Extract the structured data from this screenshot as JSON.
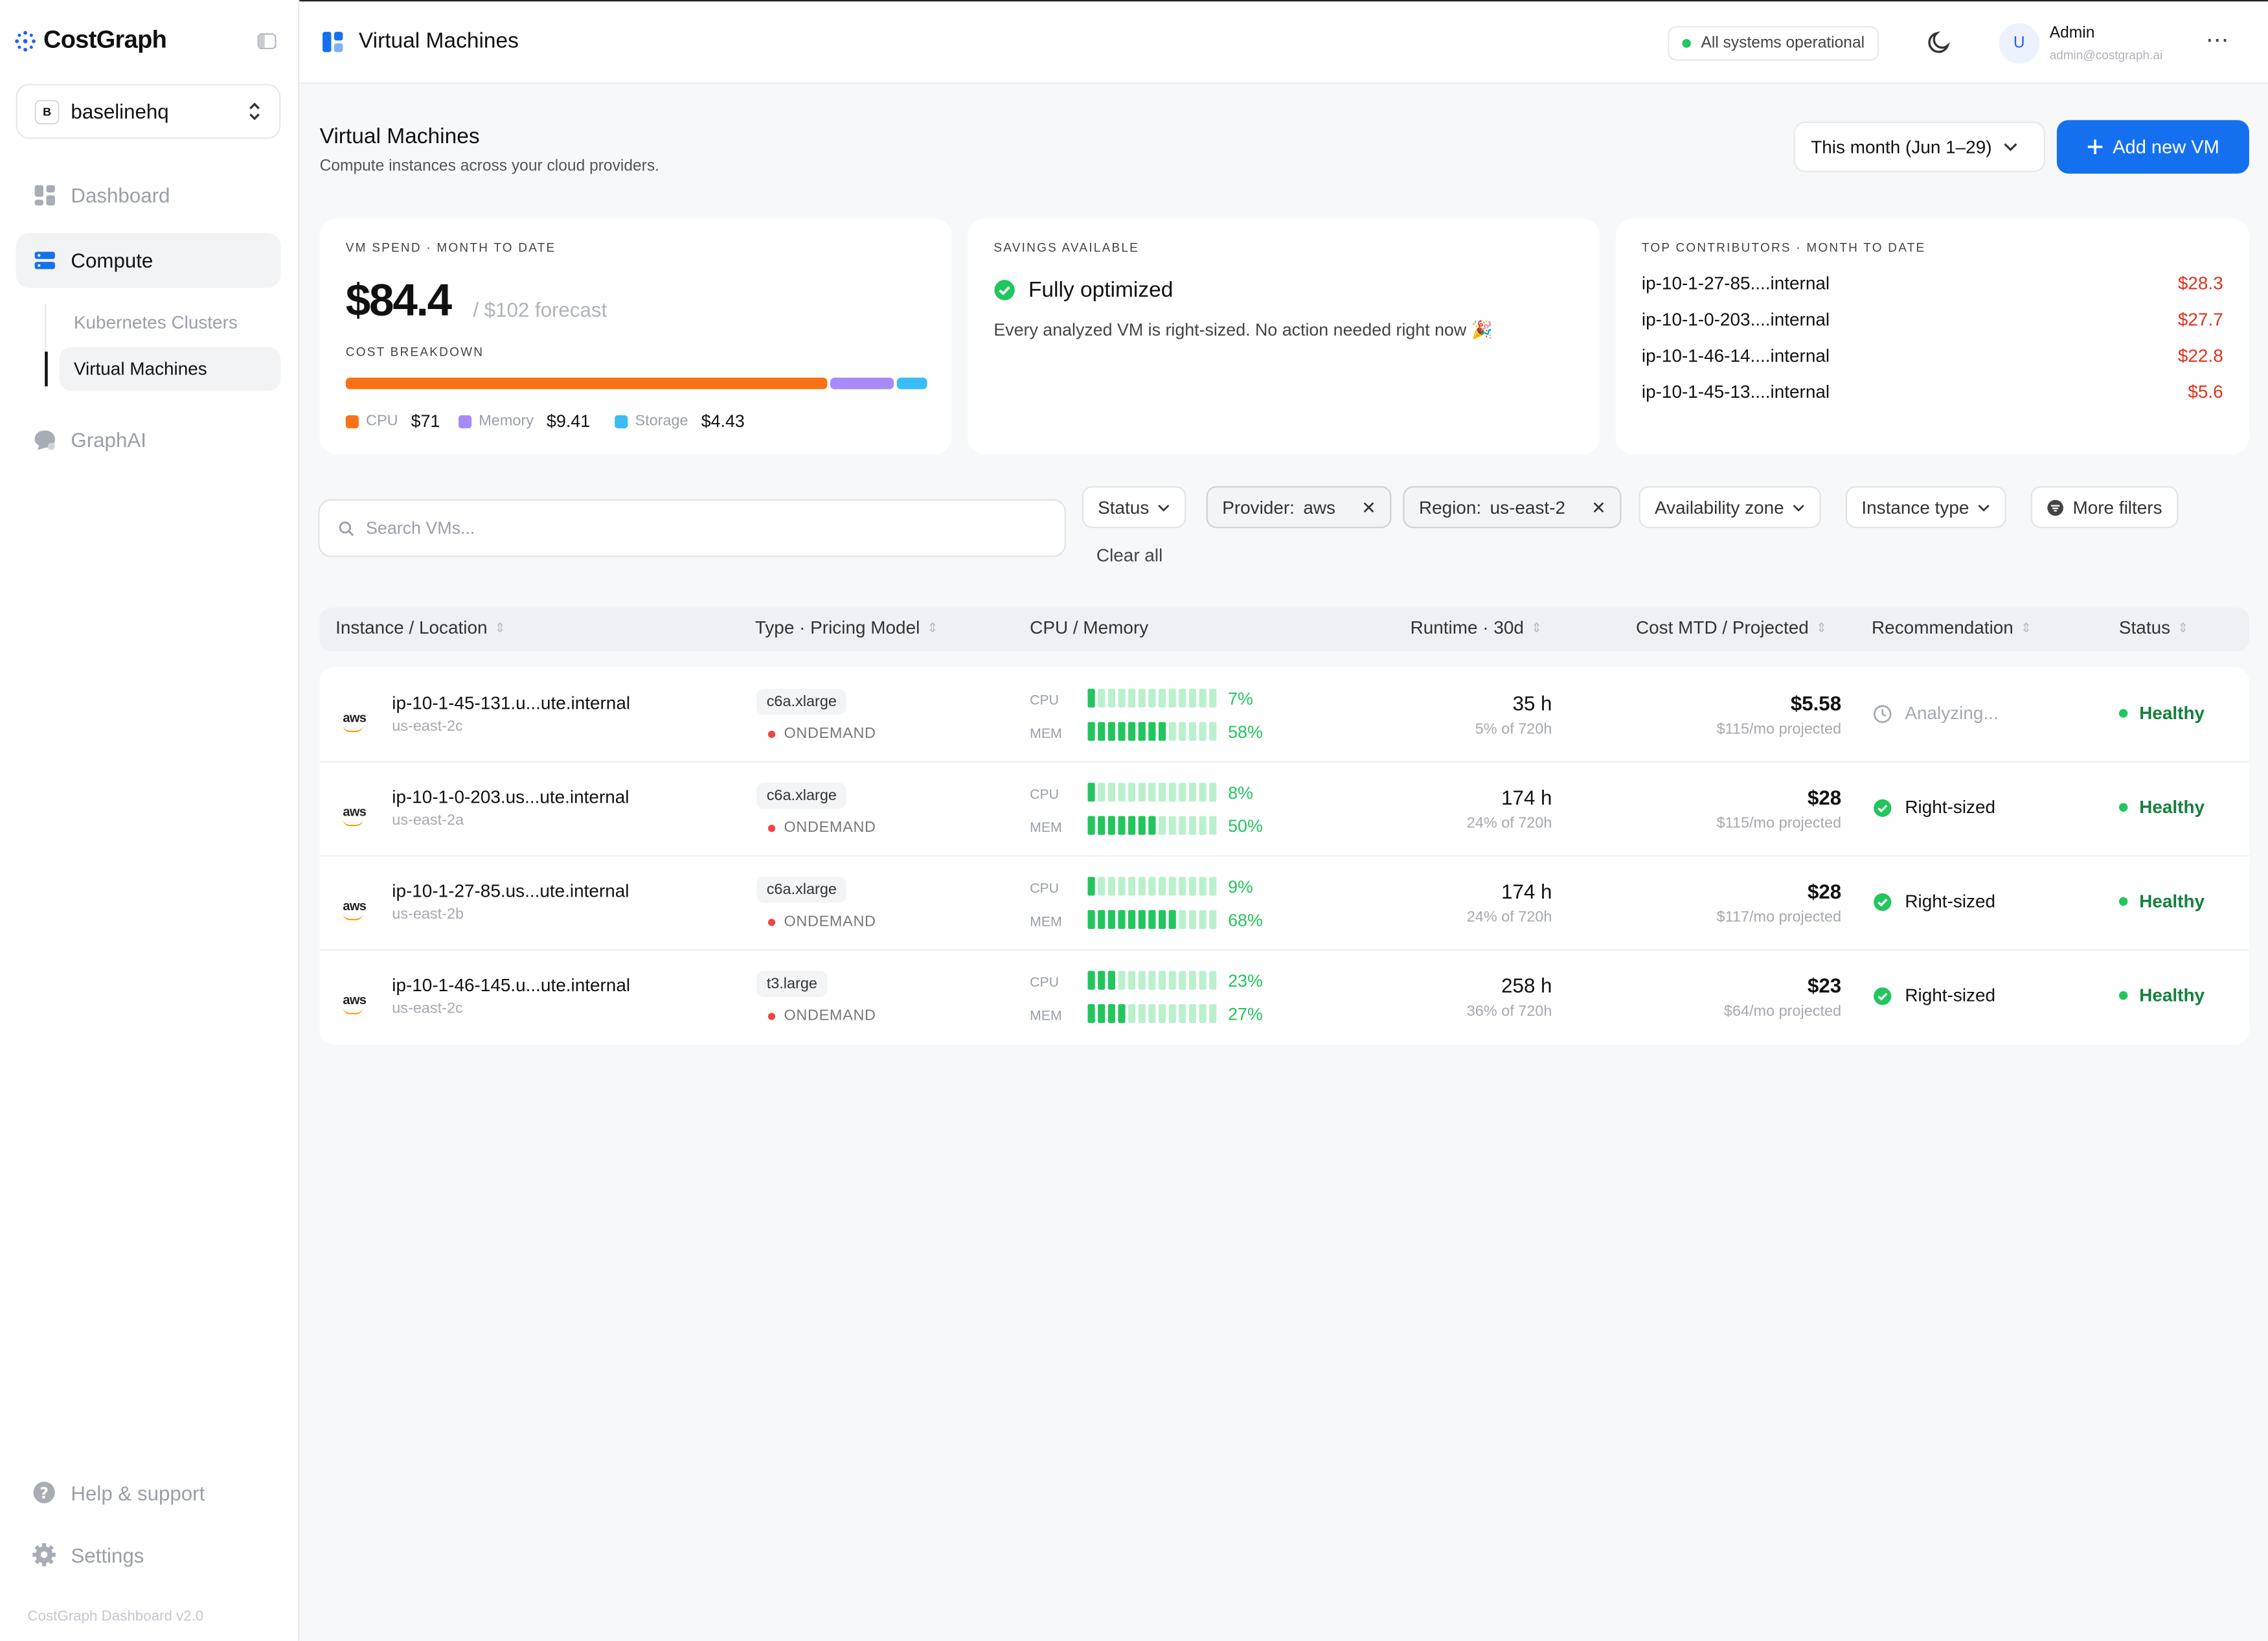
{
  "app": {
    "name": "CostGraph",
    "version": "CostGraph Dashboard v2.0"
  },
  "workspace": {
    "badge": "B",
    "name": "baselinehq"
  },
  "nav": {
    "dashboard": "Dashboard",
    "compute": "Compute",
    "k8s": "Kubernetes Clusters",
    "vms": "Virtual Machines",
    "graphai": "GraphAI",
    "help": "Help & support",
    "settings": "Settings"
  },
  "topbar": {
    "title": "Virtual Machines",
    "status": "All systems operational",
    "user_initial": "U",
    "user_name": "Admin",
    "user_email": "admin@costgraph.ai"
  },
  "page": {
    "title": "Virtual Machines",
    "subtitle": "Compute instances across your cloud providers.",
    "date_range": "This month (Jun 1–29)",
    "add_button": "Add new VM"
  },
  "spend_card": {
    "label": "VM SPEND · MONTH TO DATE",
    "value": "$84.4",
    "forecast": "/ $102 forecast",
    "breakdown_label": "COST BREAKDOWN",
    "breakdown": [
      {
        "name": "CPU",
        "value": "$71",
        "amount": 71,
        "color": "#f97316"
      },
      {
        "name": "Memory",
        "value": "$9.41",
        "amount": 9.41,
        "color": "#a78bfa"
      },
      {
        "name": "Storage",
        "value": "$4.43",
        "amount": 4.43,
        "color": "#38bdf8"
      }
    ]
  },
  "savings_card": {
    "label": "SAVINGS AVAILABLE",
    "headline": "Fully optimized",
    "description": "Every analyzed VM is right-sized. No action needed right now 🎉"
  },
  "contrib_card": {
    "label": "TOP CONTRIBUTORS · MONTH TO DATE",
    "items": [
      {
        "name": "ip-10-1-27-85....internal",
        "value": "$28.3"
      },
      {
        "name": "ip-10-1-0-203....internal",
        "value": "$27.7"
      },
      {
        "name": "ip-10-1-46-14....internal",
        "value": "$22.8"
      },
      {
        "name": "ip-10-1-45-13....internal",
        "value": "$5.6"
      }
    ]
  },
  "filters": {
    "search_placeholder": "Search VMs...",
    "status": "Status",
    "provider_key": "Provider:",
    "provider_val": "aws",
    "region_key": "Region:",
    "region_val": "us-east-2",
    "az": "Availability zone",
    "instance_type": "Instance type",
    "more": "More filters",
    "clear": "Clear all"
  },
  "table": {
    "headers": {
      "instance": "Instance / Location",
      "type": "Type · Pricing Model",
      "cpu_mem": "CPU / Memory",
      "runtime": "Runtime · 30d",
      "cost": "Cost MTD / Projected",
      "rec": "Recommendation",
      "status": "Status"
    },
    "cpu_label": "CPU",
    "mem_label": "MEM",
    "rows": [
      {
        "provider": "aws",
        "name": "ip-10-1-45-131.u...ute.internal",
        "zone": "us-east-2c",
        "type": "c6a.xlarge",
        "pricing": "ONDEMAND",
        "cpu": "7%",
        "cpu_level": 0.07,
        "mem": "58%",
        "mem_level": 0.58,
        "runtime": "35 h",
        "runtime_sub": "5% of 720h",
        "cost": "$5.58",
        "cost_sub": "$115/mo projected",
        "rec": "Analyzing...",
        "rec_state": "analyzing",
        "status": "Healthy"
      },
      {
        "provider": "aws",
        "name": "ip-10-1-0-203.us...ute.internal",
        "zone": "us-east-2a",
        "type": "c6a.xlarge",
        "pricing": "ONDEMAND",
        "cpu": "8%",
        "cpu_level": 0.08,
        "mem": "50%",
        "mem_level": 0.5,
        "runtime": "174 h",
        "runtime_sub": "24% of 720h",
        "cost": "$28",
        "cost_sub": "$115/mo projected",
        "rec": "Right-sized",
        "rec_state": "ok",
        "status": "Healthy"
      },
      {
        "provider": "aws",
        "name": "ip-10-1-27-85.us...ute.internal",
        "zone": "us-east-2b",
        "type": "c6a.xlarge",
        "pricing": "ONDEMAND",
        "cpu": "9%",
        "cpu_level": 0.09,
        "mem": "68%",
        "mem_level": 0.68,
        "runtime": "174 h",
        "runtime_sub": "24% of 720h",
        "cost": "$28",
        "cost_sub": "$117/mo projected",
        "rec": "Right-sized",
        "rec_state": "ok",
        "status": "Healthy"
      },
      {
        "provider": "aws",
        "name": "ip-10-1-46-145.u...ute.internal",
        "zone": "us-east-2c",
        "type": "t3.large",
        "pricing": "ONDEMAND",
        "cpu": "23%",
        "cpu_level": 0.23,
        "mem": "27%",
        "mem_level": 0.27,
        "runtime": "258 h",
        "runtime_sub": "36% of 720h",
        "cost": "$23",
        "cost_sub": "$64/mo projected",
        "rec": "Right-sized",
        "rec_state": "ok",
        "status": "Healthy"
      }
    ]
  }
}
